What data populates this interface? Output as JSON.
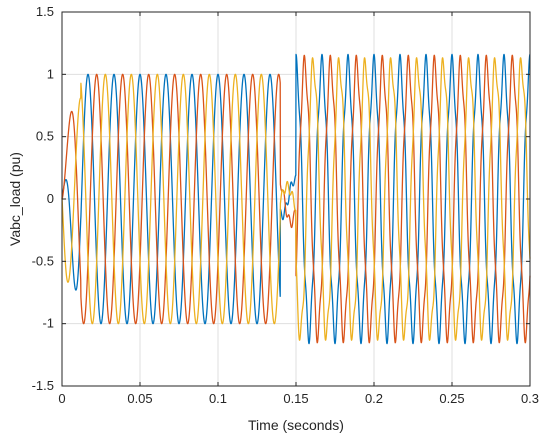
{
  "chart_data": {
    "type": "line",
    "title": "",
    "xlabel": "Time (seconds)",
    "ylabel": "Vabc_load (pu)",
    "xlim": [
      0,
      0.3
    ],
    "ylim": [
      -1.5,
      1.5
    ],
    "x_ticks": [
      0,
      0.05,
      0.1,
      0.15,
      0.2,
      0.25,
      0.3
    ],
    "x_tick_labels": [
      "0",
      "0.05",
      "0.1",
      "0.15",
      "0.2",
      "0.25",
      "0.3"
    ],
    "y_ticks": [
      -1.5,
      -1,
      -0.5,
      0,
      0.5,
      1,
      1.5
    ],
    "y_tick_labels": [
      "-1.5",
      "-1",
      "-0.5",
      "0",
      "0.5",
      "1",
      "1.5"
    ],
    "grid": true,
    "frequency_hz": 60,
    "sag_interval": [
      0.14,
      0.15
    ],
    "series": [
      {
        "color": "#0072BD",
        "phase_deg": 90,
        "amplitude_before": 1.0,
        "amplitude_after": 1.08,
        "harmonic_after": 0.08
      },
      {
        "color": "#D95319",
        "phase_deg": -30,
        "amplitude_before": 1.0,
        "amplitude_after": 1.08,
        "harmonic_after": 0.08
      },
      {
        "color": "#EDB120",
        "phase_deg": 210,
        "amplitude_before": 1.0,
        "amplitude_after": 1.08,
        "harmonic_after": 0.08
      }
    ]
  }
}
